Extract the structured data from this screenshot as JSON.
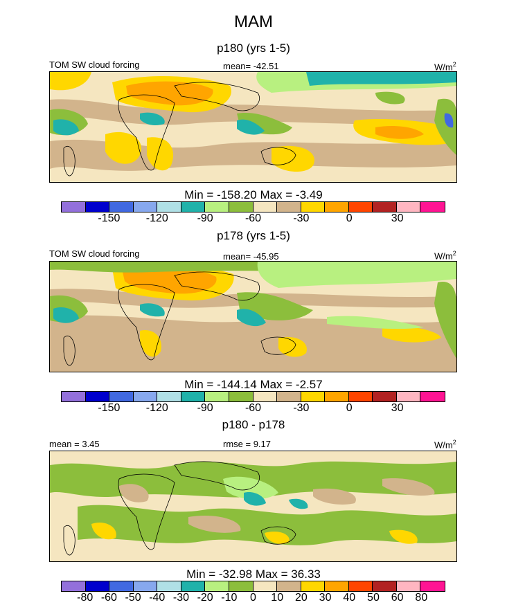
{
  "title": "MAM",
  "units": "W/m",
  "units_sup": "2",
  "panels": [
    {
      "title": "p180 (yrs 1-5)",
      "left_label": "TOM SW cloud forcing",
      "center_label": "mean= -42.51",
      "minmax": "Min = -158.20 Max =  -3.49",
      "colorbar": {
        "colors": [
          "#9370db",
          "#0000cd",
          "#4169e1",
          "#87a8ee",
          "#b0e0e6",
          "#20b2aa",
          "#b8f080",
          "#8cbe3c",
          "#f5e6c0",
          "#d2b48c",
          "#ffd700",
          "#ffa500",
          "#ff4500",
          "#b22222",
          "#ffb6c1",
          "#ff1493"
        ],
        "tick_labels": [
          "-150",
          "-120",
          "-90",
          "-60",
          "-30",
          "0",
          "30"
        ]
      }
    },
    {
      "title": "p178 (yrs 1-5)",
      "left_label": "TOM SW cloud forcing",
      "center_label": "mean= -45.95",
      "minmax": "Min = -144.14 Max =  -2.57",
      "colorbar": {
        "colors": [
          "#9370db",
          "#0000cd",
          "#4169e1",
          "#87a8ee",
          "#b0e0e6",
          "#20b2aa",
          "#b8f080",
          "#8cbe3c",
          "#f5e6c0",
          "#d2b48c",
          "#ffd700",
          "#ffa500",
          "#ff4500",
          "#b22222",
          "#ffb6c1",
          "#ff1493"
        ],
        "tick_labels": [
          "-150",
          "-120",
          "-90",
          "-60",
          "-30",
          "0",
          "30"
        ]
      }
    },
    {
      "title": "p180 - p178",
      "left_label": "mean =   3.45",
      "center_label": "rmse =   9.17",
      "minmax": "Min = -32.98 Max =  36.33",
      "colorbar": {
        "colors": [
          "#9370db",
          "#0000cd",
          "#4169e1",
          "#87a8ee",
          "#b0e0e6",
          "#20b2aa",
          "#b8f080",
          "#8cbe3c",
          "#f5e6c0",
          "#d2b48c",
          "#ffd700",
          "#ffa500",
          "#ff4500",
          "#b22222",
          "#ffb6c1",
          "#ff1493"
        ],
        "tick_labels": [
          "-80",
          "-60",
          "-50",
          "-40",
          "-30",
          "-20",
          "-10",
          "0",
          "10",
          "20",
          "30",
          "40",
          "50",
          "60",
          "80"
        ]
      }
    }
  ]
}
